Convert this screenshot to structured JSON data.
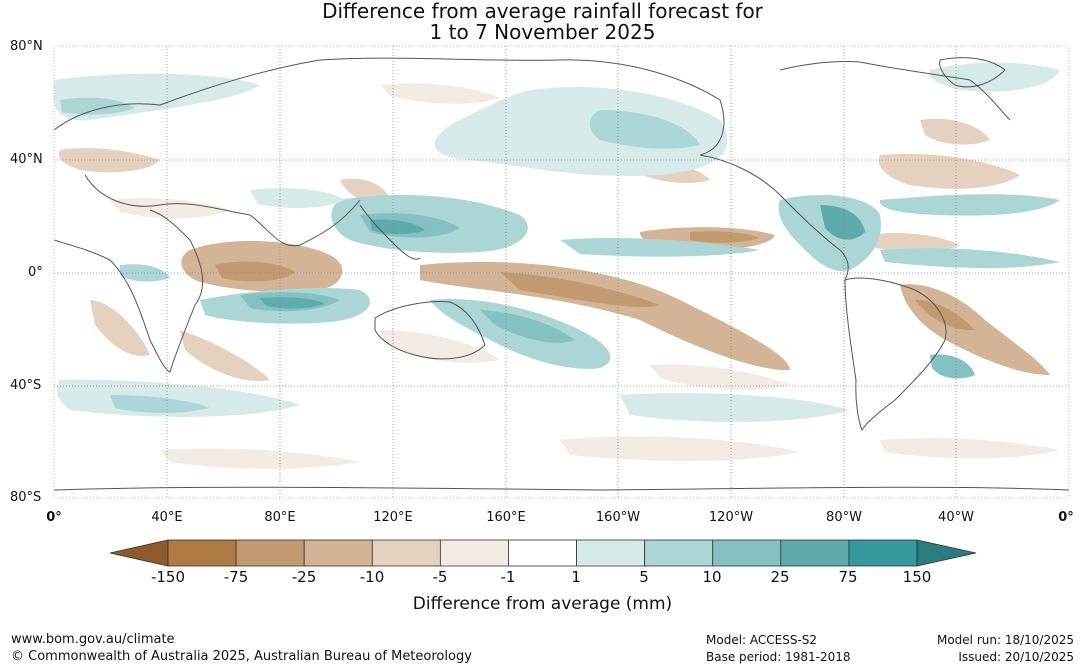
{
  "title": {
    "line1": "Difference from average rainfall forecast for",
    "line2": "1 to 7 November 2025"
  },
  "map": {
    "lat_labels": [
      "80°N",
      "40°N",
      "0°",
      "40°S",
      "80°S"
    ],
    "lon_labels": [
      "0°",
      "40°E",
      "80°E",
      "120°E",
      "160°E",
      "160°W",
      "120°W",
      "80°W",
      "40°W",
      "0°"
    ]
  },
  "colorbar": {
    "title": "Difference from average (mm)",
    "tick_labels": [
      "-150",
      "-75",
      "-25",
      "-10",
      "-5",
      "-1",
      "1",
      "5",
      "10",
      "25",
      "75",
      "150"
    ],
    "colors": {
      "below_min": "#8f5a2a",
      "bins": [
        "#b07a44",
        "#c39a70",
        "#d3b496",
        "#e4d1bf",
        "#f2ece5",
        "#ffffff",
        "#d6ebe9",
        "#acd6d5",
        "#84c2c2",
        "#5dabac",
        "#34999a"
      ],
      "above_max": "#2a7c7d"
    }
  },
  "footer": {
    "website": "www.bom.gov.au/climate",
    "copyright": "© Commonwealth of Australia 2025, Australian Bureau of Meteorology",
    "model": "Model: ACCESS-S2",
    "base_period": "Base period: 1981-2018",
    "model_run": "Model run: 18/10/2025",
    "issued": "Issued: 20/10/2025"
  }
}
